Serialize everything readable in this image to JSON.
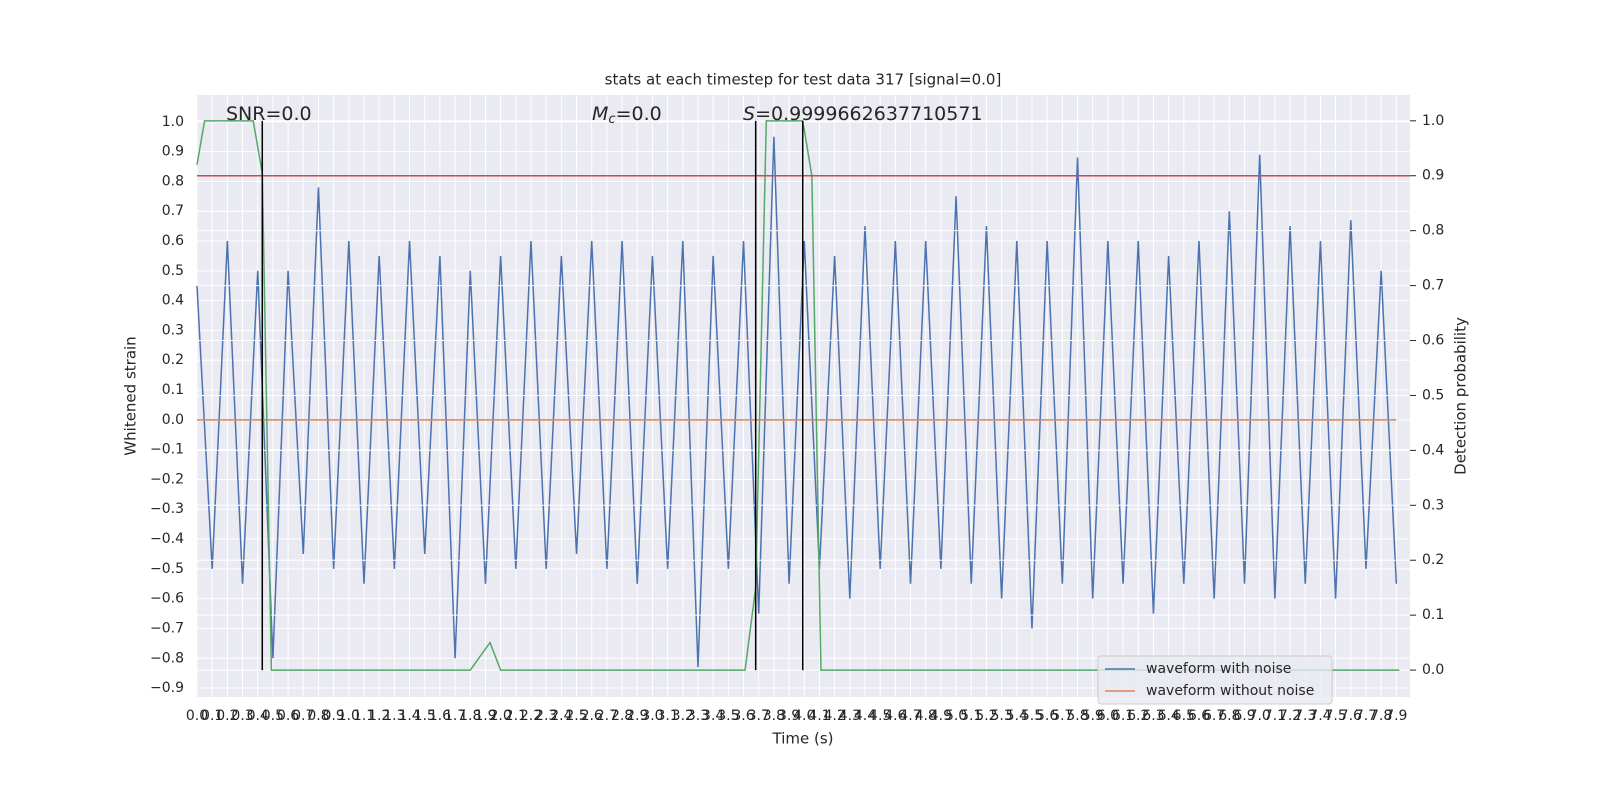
{
  "chart_data": {
    "type": "line",
    "title": "stats at each timestep for test data 317 [signal=0.0]",
    "x_label": "Time (s)",
    "y_label": "Whitened strain",
    "y2_label": "Detection probability",
    "grid": true,
    "legend_loc": "lower right",
    "xlim": [
      0,
      7.99
    ],
    "ylim": [
      -0.93,
      1.09
    ],
    "y2lim": [
      -0.049,
      1.047
    ],
    "xticks": [
      {
        "value": 0,
        "label": "0.0"
      },
      0.1,
      0.2,
      0.3,
      0.4,
      0.5,
      0.6,
      0.7,
      0.8,
      0.9,
      {
        "value": 1,
        "label": "1.0"
      },
      1.1,
      1.2,
      1.3,
      1.4,
      1.5,
      1.6,
      1.7,
      1.8,
      1.9,
      {
        "value": 2,
        "label": "2.0"
      },
      2.1,
      2.2,
      2.3,
      2.4,
      2.5,
      2.6,
      2.7,
      2.8,
      2.9,
      {
        "value": 3,
        "label": "3.0"
      },
      3.1,
      3.2,
      3.3,
      3.4,
      3.5,
      3.6,
      3.7,
      3.8,
      3.9,
      {
        "value": 4,
        "label": "4.0"
      },
      4.1,
      4.2,
      4.3,
      4.4,
      4.5,
      4.6,
      4.7,
      4.8,
      4.9,
      {
        "value": 5,
        "label": "5.0"
      },
      5.1,
      5.2,
      5.3,
      5.4,
      5.5,
      5.6,
      5.7,
      5.8,
      5.9,
      {
        "value": 6,
        "label": "6.0"
      },
      6.1,
      6.2,
      6.3,
      6.4,
      6.5,
      6.6,
      6.7,
      6.8,
      6.9,
      {
        "value": 7,
        "label": "7.0"
      },
      7.1,
      7.2,
      7.3,
      7.4,
      7.5,
      7.6,
      7.7,
      7.8,
      7.9
    ],
    "yticks": [
      {
        "value": -0.9,
        "label": "−0.9"
      },
      {
        "value": -0.8,
        "label": "−0.8"
      },
      {
        "value": -0.7,
        "label": "−0.7"
      },
      {
        "value": -0.6,
        "label": "−0.6"
      },
      {
        "value": -0.5,
        "label": "−0.5"
      },
      {
        "value": -0.4,
        "label": "−0.4"
      },
      {
        "value": -0.3,
        "label": "−0.3"
      },
      {
        "value": -0.2,
        "label": "−0.2"
      },
      {
        "value": -0.1,
        "label": "−0.1"
      },
      {
        "value": 0,
        "label": "0.0"
      },
      0.1,
      0.2,
      0.3,
      0.4,
      0.5,
      0.6,
      0.7,
      0.8,
      0.9,
      {
        "value": 1,
        "label": "1.0"
      }
    ],
    "y2ticks": [
      {
        "value": 0,
        "label": "0.0"
      },
      0.1,
      0.2,
      0.3,
      0.4,
      0.5,
      0.6,
      0.7,
      0.8,
      0.9,
      {
        "value": 1,
        "label": "1.0"
      }
    ],
    "x": [
      0,
      0.1,
      0.2,
      0.3,
      0.4,
      0.5,
      0.6,
      0.7,
      0.8,
      0.9,
      1,
      1.1,
      1.2,
      1.3,
      1.4,
      1.5,
      1.6,
      1.7,
      1.8,
      1.9,
      2,
      2.1,
      2.2,
      2.3,
      2.4,
      2.5,
      2.6,
      2.7,
      2.8,
      2.9,
      3,
      3.1,
      3.2,
      3.3,
      3.4,
      3.5,
      3.6,
      3.7,
      3.8,
      3.9,
      4,
      4.1,
      4.2,
      4.3,
      4.4,
      4.5,
      4.6,
      4.7,
      4.8,
      4.9,
      5,
      5.1,
      5.2,
      5.3,
      5.4,
      5.5,
      5.6,
      5.7,
      5.8,
      5.9,
      6,
      6.1,
      6.2,
      6.3,
      6.4,
      6.5,
      6.6,
      6.7,
      6.8,
      6.9,
      7,
      7.1,
      7.2,
      7.3,
      7.4,
      7.5,
      7.6,
      7.7,
      7.8,
      7.9
    ],
    "series": [
      {
        "name": "waveform with noise",
        "color": "#4c72b0",
        "values": [
          0.45,
          -0.5,
          0.6,
          -0.55,
          0.5,
          -0.8,
          0.5,
          -0.45,
          0.78,
          -0.5,
          0.6,
          -0.55,
          0.55,
          -0.5,
          0.6,
          -0.45,
          0.55,
          -0.8,
          0.5,
          -0.55,
          0.55,
          -0.5,
          0.6,
          -0.5,
          0.55,
          -0.45,
          0.6,
          -0.5,
          0.6,
          -0.55,
          0.55,
          -0.5,
          0.6,
          -0.83,
          0.55,
          -0.5,
          0.6,
          -0.65,
          0.95,
          -0.55,
          0.6,
          -0.5,
          0.55,
          -0.6,
          0.65,
          -0.5,
          0.6,
          -0.55,
          0.6,
          -0.5,
          0.75,
          -0.55,
          0.65,
          -0.6,
          0.6,
          -0.7,
          0.6,
          -0.55,
          0.88,
          -0.6,
          0.6,
          -0.55,
          0.6,
          -0.65,
          0.55,
          -0.55,
          0.6,
          -0.6,
          0.7,
          -0.55,
          0.89,
          -0.6,
          0.65,
          -0.55,
          0.6,
          -0.6,
          0.67,
          -0.5,
          0.5,
          -0.55
        ]
      },
      {
        "name": "waveform without noise",
        "color": "#dd8452",
        "values": [
          0,
          0,
          0,
          0,
          0,
          0,
          0,
          0,
          0,
          0,
          0,
          0,
          0,
          0,
          0,
          0,
          0,
          0,
          0,
          0,
          0,
          0,
          0,
          0,
          0,
          0,
          0,
          0,
          0,
          0,
          0,
          0,
          0,
          0,
          0,
          0,
          0,
          0,
          0,
          0,
          0,
          0,
          0,
          0,
          0,
          0,
          0,
          0,
          0,
          0,
          0,
          0,
          0,
          0,
          0,
          0,
          0,
          0,
          0,
          0,
          0,
          0,
          0,
          0,
          0,
          0,
          0,
          0,
          0,
          0,
          0,
          0,
          0,
          0,
          0,
          0,
          0,
          0,
          0,
          0
        ]
      }
    ],
    "probability": {
      "color": "#55a868",
      "axis": "y2",
      "x": [
        0,
        0.05,
        0.1,
        0.37,
        0.43,
        0.49,
        1.8,
        1.93,
        2.0,
        3.61,
        3.68,
        3.75,
        3.99,
        4.05,
        4.11,
        7.92
      ],
      "values": [
        0.92,
        1.0,
        1.0,
        1.0,
        0.905,
        0.0,
        0.0,
        0.05,
        0.0,
        0.0,
        0.15,
        1.0,
        1.0,
        0.9,
        0.0,
        0.0
      ]
    },
    "threshold": {
      "value": 0.9,
      "axis": "y2",
      "color": "#c44e52"
    },
    "vlines": {
      "x": [
        0.43,
        3.68,
        3.99
      ],
      "from": 0,
      "to": 1,
      "axis": "y2",
      "color": "#000000"
    },
    "annotations": [
      {
        "text": "SNR=0.0"
      },
      {
        "symbol": "M",
        "subscript": "c",
        "text": "=0.0"
      },
      {
        "symbol": "S",
        "text": "=0.9999662637710571"
      }
    ]
  }
}
